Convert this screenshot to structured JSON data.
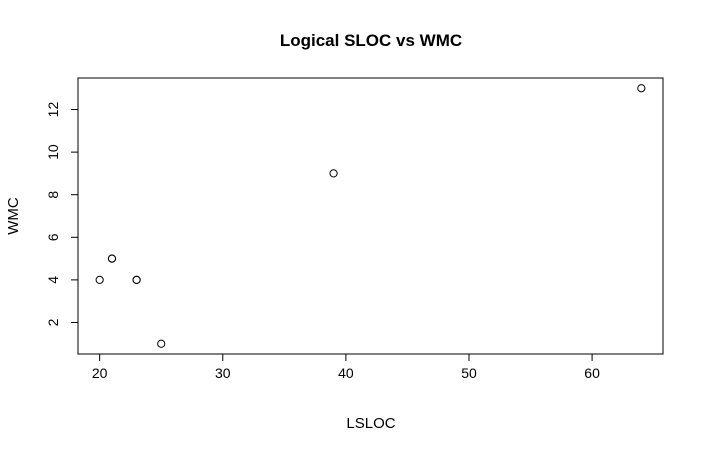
{
  "chart_data": {
    "type": "scatter",
    "title": "Logical SLOC vs WMC",
    "xlabel": "LSLOC",
    "ylabel": "WMC",
    "xlim": [
      18.24,
      65.76
    ],
    "ylim": [
      0.52,
      13.48
    ],
    "xticks": [
      20,
      30,
      40,
      50,
      60
    ],
    "yticks": [
      2,
      4,
      6,
      8,
      10,
      12
    ],
    "grid": false,
    "marker": "open-circle",
    "points": [
      {
        "x": 20,
        "y": 4
      },
      {
        "x": 21,
        "y": 5
      },
      {
        "x": 21,
        "y": 5
      },
      {
        "x": 23,
        "y": 4
      },
      {
        "x": 23,
        "y": 4
      },
      {
        "x": 25,
        "y": 1
      },
      {
        "x": 39,
        "y": 9
      },
      {
        "x": 64,
        "y": 13
      }
    ]
  }
}
